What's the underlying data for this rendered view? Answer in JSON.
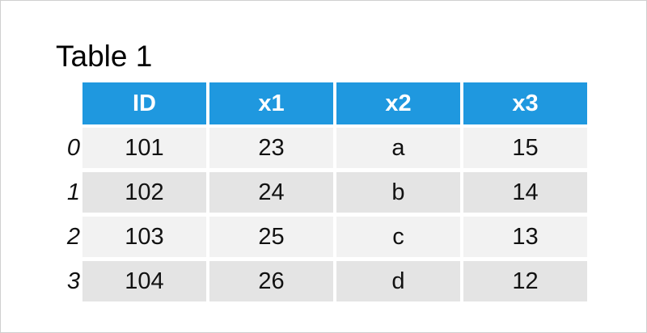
{
  "title": "Table 1",
  "table": {
    "header": [
      "ID",
      "x1",
      "x2",
      "x3"
    ],
    "index": [
      0,
      1,
      2,
      3
    ],
    "rows": [
      [
        101,
        23,
        "a",
        15
      ],
      [
        102,
        24,
        "b",
        14
      ],
      [
        103,
        25,
        "c",
        13
      ],
      [
        104,
        26,
        "d",
        12
      ]
    ]
  }
}
